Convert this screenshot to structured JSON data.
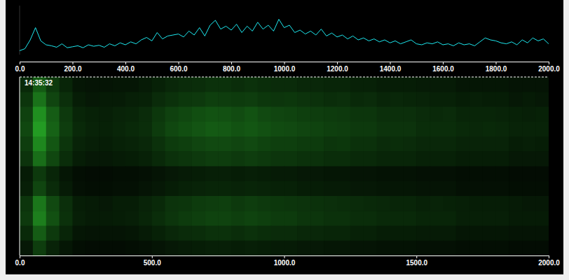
{
  "chart_data": [
    {
      "type": "line",
      "color": "#1de9f0",
      "tick_labels": "x",
      "xlim": [
        0,
        2000
      ],
      "ylim": [
        0,
        100
      ],
      "xticks": [
        {
          "value": 0,
          "label": "0.0"
        },
        {
          "value": 200,
          "label": "200.0"
        },
        {
          "value": 400,
          "label": "400.0"
        },
        {
          "value": 600,
          "label": "600.0"
        },
        {
          "value": 800,
          "label": "800.0"
        },
        {
          "value": 1000,
          "label": "1000.0"
        },
        {
          "value": 1200,
          "label": "1200.0"
        },
        {
          "value": 1400,
          "label": "1400.0"
        },
        {
          "value": 1600,
          "label": "1600.0"
        },
        {
          "value": 1800,
          "label": "1800.0"
        },
        {
          "value": 2000,
          "label": "2000.0"
        }
      ],
      "x": [
        0,
        20,
        40,
        60,
        80,
        100,
        120,
        140,
        160,
        180,
        200,
        220,
        240,
        260,
        280,
        300,
        320,
        340,
        360,
        380,
        400,
        420,
        440,
        460,
        480,
        500,
        520,
        540,
        560,
        580,
        600,
        620,
        640,
        660,
        680,
        700,
        720,
        740,
        760,
        780,
        800,
        820,
        840,
        860,
        880,
        900,
        920,
        940,
        960,
        980,
        1000,
        1020,
        1040,
        1060,
        1080,
        1100,
        1120,
        1140,
        1160,
        1180,
        1200,
        1220,
        1240,
        1260,
        1280,
        1300,
        1320,
        1340,
        1360,
        1380,
        1400,
        1420,
        1440,
        1460,
        1480,
        1500,
        1520,
        1540,
        1560,
        1580,
        1600,
        1620,
        1640,
        1660,
        1680,
        1700,
        1720,
        1740,
        1760,
        1780,
        1800,
        1820,
        1840,
        1860,
        1880,
        1900,
        1920,
        1940,
        1960,
        1980,
        2000
      ],
      "values": [
        8,
        12,
        30,
        55,
        28,
        20,
        18,
        15,
        22,
        14,
        16,
        18,
        14,
        20,
        17,
        19,
        15,
        22,
        18,
        24,
        20,
        26,
        22,
        30,
        35,
        28,
        45,
        32,
        38,
        40,
        42,
        36,
        48,
        40,
        55,
        38,
        60,
        70,
        52,
        58,
        50,
        62,
        45,
        58,
        48,
        66,
        52,
        60,
        48,
        72,
        55,
        60,
        45,
        50,
        42,
        48,
        40,
        52,
        38,
        44,
        36,
        40,
        32,
        38,
        30,
        34,
        28,
        32,
        26,
        30,
        24,
        28,
        22,
        26,
        30,
        22,
        20,
        24,
        22,
        26,
        20,
        22,
        18,
        24,
        20,
        22,
        18,
        26,
        34,
        30,
        28,
        24,
        22,
        26,
        20,
        30,
        24,
        34,
        28,
        32,
        22
      ]
    },
    {
      "type": "heatmap",
      "color": "#2ecc2e",
      "annotation": "14:35:32",
      "tick_labels": "x",
      "xlim": [
        0,
        2000
      ],
      "zlim": [
        0,
        100
      ],
      "xticks": [
        {
          "value": 0,
          "label": "0.0"
        },
        {
          "value": 500,
          "label": "500.0"
        },
        {
          "value": 1000,
          "label": "1000.0"
        },
        {
          "value": 1500,
          "label": "1500.0"
        },
        {
          "value": 2000,
          "label": "2000.0"
        }
      ],
      "x": [
        0,
        50,
        100,
        150,
        200,
        250,
        300,
        350,
        400,
        450,
        500,
        550,
        600,
        650,
        700,
        750,
        800,
        850,
        900,
        950,
        1000,
        1050,
        1100,
        1150,
        1200,
        1250,
        1300,
        1350,
        1400,
        1450,
        1500,
        1550,
        1600,
        1650,
        1700,
        1750,
        1800,
        1850,
        1900,
        1950
      ],
      "cells": [
        [
          20,
          44,
          28,
          18,
          11,
          10,
          10,
          11,
          11,
          13,
          16,
          19,
          21,
          22,
          24,
          24,
          22,
          24,
          22,
          21,
          21,
          19,
          19,
          18,
          18,
          16,
          16,
          14,
          14,
          14,
          13,
          13,
          13,
          11,
          11,
          11,
          11,
          10,
          10,
          10
        ],
        [
          26,
          56,
          34,
          23,
          14,
          12,
          13,
          13,
          15,
          16,
          21,
          24,
          27,
          28,
          31,
          30,
          29,
          30,
          27,
          26,
          27,
          25,
          24,
          22,
          23,
          20,
          21,
          18,
          19,
          18,
          17,
          16,
          16,
          14,
          15,
          14,
          14,
          12,
          13,
          12
        ],
        [
          32,
          70,
          45,
          28,
          18,
          16,
          15,
          17,
          18,
          21,
          27,
          32,
          35,
          38,
          40,
          39,
          37,
          40,
          36,
          34,
          33,
          31,
          30,
          29,
          28,
          26,
          26,
          23,
          23,
          23,
          21,
          20,
          21,
          18,
          18,
          18,
          17,
          16,
          15,
          16
        ],
        [
          35,
          76,
          48,
          30,
          20,
          17,
          16,
          18,
          20,
          22,
          29,
          35,
          38,
          41,
          44,
          43,
          40,
          42,
          39,
          37,
          36,
          34,
          33,
          31,
          30,
          28,
          28,
          25,
          25,
          25,
          22,
          22,
          22,
          20,
          19,
          20,
          19,
          17,
          17,
          17
        ],
        [
          30,
          66,
          42,
          26,
          17,
          15,
          14,
          16,
          17,
          19,
          24,
          29,
          31,
          34,
          36,
          36,
          34,
          36,
          33,
          31,
          31,
          29,
          29,
          26,
          27,
          24,
          24,
          21,
          22,
          21,
          19,
          19,
          19,
          17,
          17,
          17,
          17,
          14,
          15,
          14
        ],
        [
          25,
          54,
          35,
          22,
          14,
          12,
          12,
          13,
          14,
          16,
          20,
          24,
          26,
          28,
          30,
          30,
          28,
          30,
          28,
          26,
          26,
          24,
          24,
          22,
          22,
          20,
          20,
          18,
          18,
          18,
          16,
          16,
          16,
          14,
          14,
          14,
          14,
          12,
          12,
          12
        ],
        [
          13,
          28,
          18,
          11,
          7,
          6,
          6,
          7,
          7,
          8,
          10,
          12,
          13,
          14,
          15,
          15,
          14,
          15,
          14,
          13,
          13,
          12,
          12,
          11,
          11,
          10,
          10,
          9,
          9,
          9,
          8,
          8,
          8,
          7,
          7,
          7,
          7,
          6,
          6,
          6
        ],
        [
          15,
          34,
          21,
          13,
          8,
          7,
          7,
          8,
          8,
          10,
          12,
          14,
          16,
          17,
          18,
          18,
          17,
          18,
          17,
          16,
          16,
          14,
          14,
          13,
          13,
          12,
          12,
          11,
          11,
          11,
          10,
          10,
          10,
          8,
          8,
          8,
          8,
          7,
          7,
          7
        ],
        [
          26,
          58,
          36,
          23,
          14,
          13,
          12,
          14,
          14,
          17,
          20,
          25,
          26,
          29,
          30,
          31,
          28,
          30,
          28,
          27,
          26,
          25,
          24,
          23,
          22,
          21,
          20,
          19,
          18,
          18,
          16,
          17,
          16,
          15,
          14,
          14,
          14,
          13,
          12,
          12
        ],
        [
          28,
          62,
          39,
          24,
          15,
          13,
          13,
          14,
          15,
          18,
          22,
          26,
          29,
          31,
          33,
          33,
          31,
          33,
          31,
          29,
          29,
          26,
          26,
          24,
          24,
          22,
          22,
          20,
          20,
          20,
          18,
          18,
          18,
          15,
          15,
          15,
          15,
          13,
          13,
          13
        ],
        [
          20,
          45,
          28,
          18,
          11,
          10,
          10,
          10,
          11,
          13,
          16,
          19,
          21,
          22,
          24,
          24,
          22,
          24,
          22,
          21,
          21,
          19,
          19,
          18,
          18,
          16,
          16,
          14,
          14,
          14,
          13,
          13,
          13,
          11,
          11,
          11,
          11,
          10,
          10,
          10
        ],
        [
          12,
          30,
          17,
          11,
          7,
          6,
          6,
          6,
          7,
          8,
          10,
          12,
          13,
          14,
          15,
          15,
          14,
          15,
          14,
          13,
          13,
          12,
          12,
          11,
          11,
          10,
          10,
          9,
          9,
          9,
          8,
          8,
          8,
          7,
          7,
          7,
          7,
          6,
          6,
          6
        ]
      ]
    }
  ]
}
